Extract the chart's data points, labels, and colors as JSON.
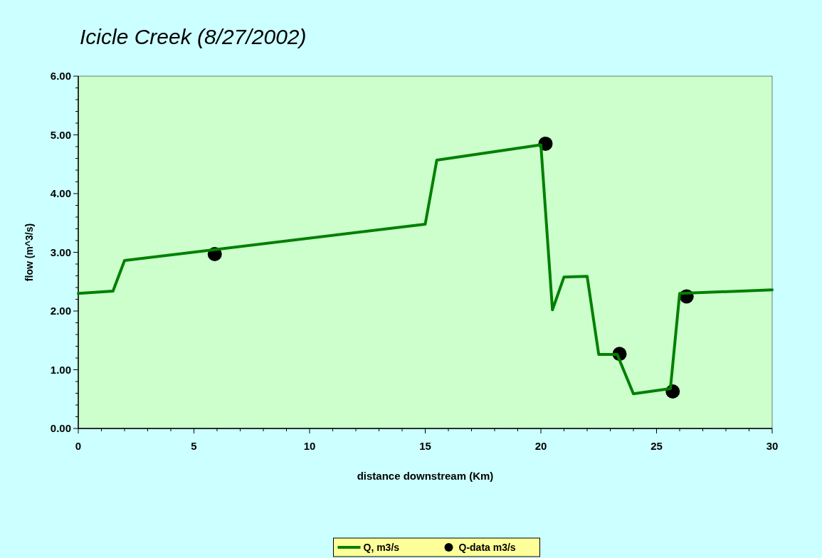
{
  "chart_data": {
    "type": "line",
    "title": "Icicle Creek (8/27/2002)",
    "xlabel": "distance downstream (Km)",
    "ylabel": "flow (m^3/s)",
    "xlim": [
      0,
      30
    ],
    "xticks": [
      0,
      {
        "value": 1,
        "label": null
      },
      {
        "value": 2,
        "label": null
      },
      {
        "value": 3,
        "label": null
      },
      {
        "value": 4,
        "label": null
      },
      5,
      {
        "value": 6,
        "label": null
      },
      {
        "value": 7,
        "label": null
      },
      {
        "value": 8,
        "label": null
      },
      {
        "value": 9,
        "label": null
      },
      10,
      {
        "value": 11,
        "label": null
      },
      {
        "value": 12,
        "label": null
      },
      {
        "value": 13,
        "label": null
      },
      {
        "value": 14,
        "label": null
      },
      15,
      {
        "value": 16,
        "label": null
      },
      {
        "value": 17,
        "label": null
      },
      {
        "value": 18,
        "label": null
      },
      {
        "value": 19,
        "label": null
      },
      20,
      {
        "value": 21,
        "label": null
      },
      {
        "value": 22,
        "label": null
      },
      {
        "value": 23,
        "label": null
      },
      {
        "value": 24,
        "label": null
      },
      25,
      {
        "value": 26,
        "label": null
      },
      {
        "value": 27,
        "label": null
      },
      {
        "value": 28,
        "label": null
      },
      {
        "value": 29,
        "label": null
      },
      30
    ],
    "ylim": [
      0,
      6
    ],
    "yticks": [
      {
        "value": 0,
        "label": "0.00"
      },
      {
        "value": 0.2,
        "label": null
      },
      {
        "value": 0.4,
        "label": null
      },
      {
        "value": 0.6,
        "label": null
      },
      {
        "value": 0.8,
        "label": null
      },
      {
        "value": 1,
        "label": "1.00"
      },
      {
        "value": 1.2,
        "label": null
      },
      {
        "value": 1.4,
        "label": null
      },
      {
        "value": 1.6,
        "label": null
      },
      {
        "value": 1.8,
        "label": null
      },
      {
        "value": 2,
        "label": "2.00"
      },
      {
        "value": 2.2,
        "label": null
      },
      {
        "value": 2.4,
        "label": null
      },
      {
        "value": 2.6,
        "label": null
      },
      {
        "value": 2.8,
        "label": null
      },
      {
        "value": 3,
        "label": "3.00"
      },
      {
        "value": 3.2,
        "label": null
      },
      {
        "value": 3.4,
        "label": null
      },
      {
        "value": 3.6,
        "label": null
      },
      {
        "value": 3.8,
        "label": null
      },
      {
        "value": 4,
        "label": "4.00"
      },
      {
        "value": 4.2,
        "label": null
      },
      {
        "value": 4.4,
        "label": null
      },
      {
        "value": 4.6,
        "label": null
      },
      {
        "value": 4.8,
        "label": null
      },
      {
        "value": 5,
        "label": "5.00"
      },
      {
        "value": 5.2,
        "label": null
      },
      {
        "value": 5.4,
        "label": null
      },
      {
        "value": 5.6,
        "label": null
      },
      {
        "value": 5.8,
        "label": null
      },
      {
        "value": 6,
        "label": "6.00"
      }
    ],
    "grid": false,
    "legend": "bottom",
    "series": [
      {
        "name": "Q, m3/s",
        "color": "#008000",
        "marker": "none",
        "x": [
          0,
          1.5,
          2,
          15,
          15.5,
          20,
          20.5,
          21,
          22,
          22.5,
          23.3,
          24,
          25.6,
          26,
          30
        ],
        "values": [
          2.3,
          2.34,
          2.86,
          3.48,
          4.57,
          4.83,
          2.02,
          2.58,
          2.59,
          1.26,
          1.26,
          0.59,
          0.68,
          2.3,
          2.36
        ]
      },
      {
        "name": "Q-data m3/s",
        "type": "scatter",
        "color": "#000000",
        "marker": "circle",
        "x": [
          5.9,
          20.2,
          23.4,
          25.7,
          26.3
        ],
        "values": [
          2.97,
          4.85,
          1.27,
          0.63,
          2.25
        ]
      }
    ]
  }
}
